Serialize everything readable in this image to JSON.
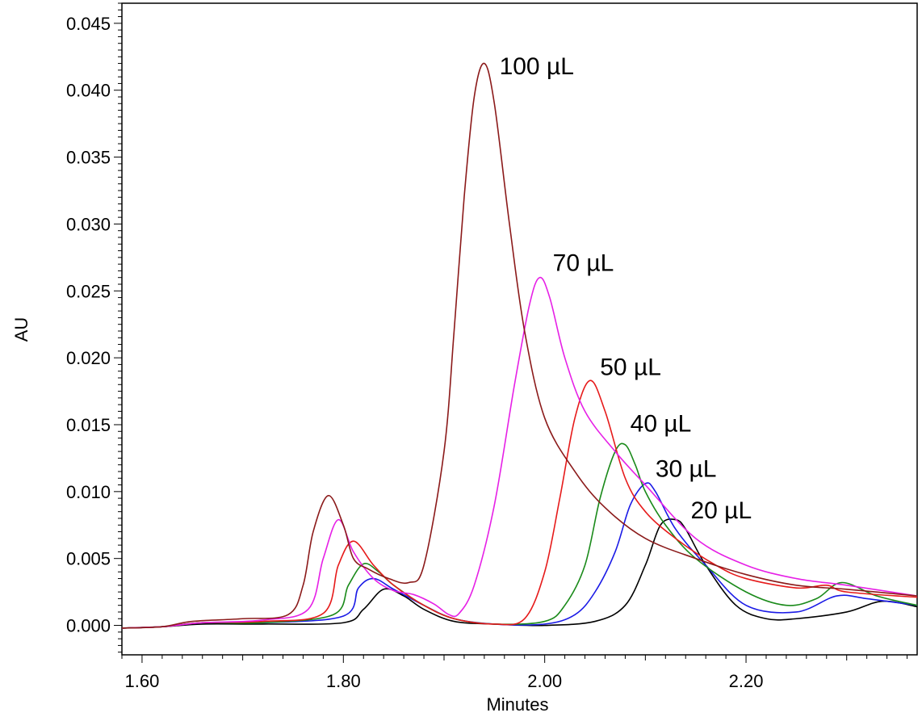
{
  "chart_data": {
    "type": "line",
    "title": "",
    "xlabel": "Minutes",
    "ylabel": "AU",
    "xlim": [
      1.58,
      2.37
    ],
    "ylim": [
      -0.0022,
      0.0465
    ],
    "xticks": [
      1.6,
      1.8,
      2.0,
      2.2
    ],
    "xtick_labels": [
      "1.60",
      "1.80",
      "2.00",
      "2.20"
    ],
    "yticks": [
      0.0,
      0.005,
      0.01,
      0.015,
      0.02,
      0.025,
      0.03,
      0.035,
      0.04,
      0.045
    ],
    "ytick_labels": [
      "0.000",
      "0.005",
      "0.010",
      "0.015",
      "0.020",
      "0.025",
      "0.030",
      "0.035",
      "0.040",
      "0.045"
    ],
    "grid": false,
    "legend": "none",
    "series": [
      {
        "name": "100 µL",
        "color": "#8b1a1a",
        "x": [
          1.58,
          1.62,
          1.65,
          1.7,
          1.745,
          1.76,
          1.77,
          1.785,
          1.8,
          1.81,
          1.825,
          1.845,
          1.865,
          1.88,
          1.9,
          1.91,
          1.92,
          1.93,
          1.94,
          1.95,
          1.965,
          1.98,
          2.0,
          2.03,
          2.06,
          2.1,
          2.15,
          2.2,
          2.25,
          2.3,
          2.37
        ],
        "y": [
          -0.0002,
          -0.0001,
          0.0003,
          0.0005,
          0.0008,
          0.003,
          0.007,
          0.0097,
          0.0075,
          0.005,
          0.0042,
          0.0035,
          0.0032,
          0.0045,
          0.013,
          0.022,
          0.032,
          0.0395,
          0.042,
          0.039,
          0.03,
          0.022,
          0.0155,
          0.0115,
          0.0088,
          0.0065,
          0.005,
          0.0038,
          0.003,
          0.0027,
          0.0022
        ]
      },
      {
        "name": "70 µL",
        "color": "#e620e6",
        "x": [
          1.58,
          1.62,
          1.66,
          1.72,
          1.765,
          1.78,
          1.795,
          1.81,
          1.83,
          1.85,
          1.87,
          1.89,
          1.905,
          1.915,
          1.93,
          1.95,
          1.97,
          1.985,
          1.995,
          2.005,
          2.02,
          2.04,
          2.07,
          2.1,
          2.15,
          2.2,
          2.25,
          2.3,
          2.37
        ],
        "y": [
          -0.0002,
          -0.0001,
          0.0002,
          0.0004,
          0.0012,
          0.005,
          0.0079,
          0.0055,
          0.0035,
          0.0026,
          0.0023,
          0.0016,
          0.0008,
          0.0009,
          0.003,
          0.009,
          0.018,
          0.024,
          0.026,
          0.0245,
          0.02,
          0.016,
          0.013,
          0.0105,
          0.0065,
          0.0045,
          0.0035,
          0.003,
          0.0022
        ]
      },
      {
        "name": "50 µL",
        "color": "#e61a1a",
        "x": [
          1.58,
          1.62,
          1.66,
          1.72,
          1.78,
          1.795,
          1.81,
          1.83,
          1.85,
          1.88,
          1.91,
          1.95,
          1.98,
          2.0,
          2.015,
          2.03,
          2.045,
          2.06,
          2.08,
          2.1,
          2.13,
          2.17,
          2.2,
          2.25,
          2.28,
          2.3,
          2.37
        ],
        "y": [
          -0.0002,
          -0.0001,
          0.0002,
          0.0003,
          0.0009,
          0.0045,
          0.0063,
          0.0045,
          0.003,
          0.0015,
          0.0005,
          0.0001,
          0.0005,
          0.004,
          0.0095,
          0.0155,
          0.0183,
          0.016,
          0.011,
          0.0085,
          0.0065,
          0.0045,
          0.0035,
          0.0028,
          0.003,
          0.0025,
          0.0021
        ]
      },
      {
        "name": "40 µL",
        "color": "#1a8a1a",
        "x": [
          1.58,
          1.62,
          1.66,
          1.72,
          1.79,
          1.805,
          1.82,
          1.835,
          1.85,
          1.88,
          1.91,
          1.95,
          2.0,
          2.02,
          2.04,
          2.055,
          2.07,
          2.08,
          2.09,
          2.1,
          2.12,
          2.15,
          2.2,
          2.24,
          2.27,
          2.295,
          2.33,
          2.37
        ],
        "y": [
          -0.0002,
          -0.0001,
          0.0002,
          0.0002,
          0.0008,
          0.003,
          0.0046,
          0.004,
          0.003,
          0.0015,
          0.0005,
          0.0001,
          0.0003,
          0.0015,
          0.0045,
          0.0095,
          0.013,
          0.0135,
          0.012,
          0.01,
          0.0075,
          0.005,
          0.0025,
          0.0015,
          0.002,
          0.0032,
          0.0022,
          0.0015
        ]
      },
      {
        "name": "30 µL",
        "color": "#1a1ae6",
        "x": [
          1.58,
          1.62,
          1.66,
          1.72,
          1.8,
          1.815,
          1.83,
          1.85,
          1.88,
          1.91,
          1.95,
          2.0,
          2.03,
          2.05,
          2.07,
          2.085,
          2.1,
          2.11,
          2.13,
          2.16,
          2.2,
          2.25,
          2.29,
          2.32,
          2.37
        ],
        "y": [
          -0.0002,
          -0.0001,
          0.0002,
          0.0002,
          0.0007,
          0.0028,
          0.0035,
          0.0027,
          0.0015,
          0.0005,
          0.0001,
          0.0001,
          0.0008,
          0.0025,
          0.0055,
          0.009,
          0.0106,
          0.01,
          0.0072,
          0.0045,
          0.0015,
          0.001,
          0.0022,
          0.002,
          0.0015
        ]
      },
      {
        "name": "20 µL",
        "color": "#000000",
        "x": [
          1.58,
          1.62,
          1.66,
          1.72,
          1.8,
          1.82,
          1.84,
          1.86,
          1.88,
          1.91,
          1.95,
          2.0,
          2.05,
          2.08,
          2.1,
          2.115,
          2.13,
          2.14,
          2.16,
          2.19,
          2.22,
          2.25,
          2.3,
          2.335,
          2.37
        ],
        "y": [
          -0.0002,
          -0.0001,
          0.0001,
          0.0001,
          0.0002,
          0.0012,
          0.0027,
          0.0022,
          0.0012,
          0.0003,
          0.0001,
          0.0,
          0.0003,
          0.0015,
          0.0045,
          0.0075,
          0.0079,
          0.0072,
          0.0045,
          0.0015,
          0.0005,
          0.0005,
          0.001,
          0.0018,
          0.0014
        ]
      }
    ],
    "annotations": [
      {
        "text": "100 µL",
        "x": 1.955,
        "y": 0.0412
      },
      {
        "text": "70 µL",
        "x": 2.008,
        "y": 0.0265
      },
      {
        "text": "50 µL",
        "x": 2.055,
        "y": 0.0187
      },
      {
        "text": "40 µL",
        "x": 2.085,
        "y": 0.0145
      },
      {
        "text": "30 µL",
        "x": 2.11,
        "y": 0.0111
      },
      {
        "text": "20 µL",
        "x": 2.145,
        "y": 0.008
      }
    ]
  }
}
